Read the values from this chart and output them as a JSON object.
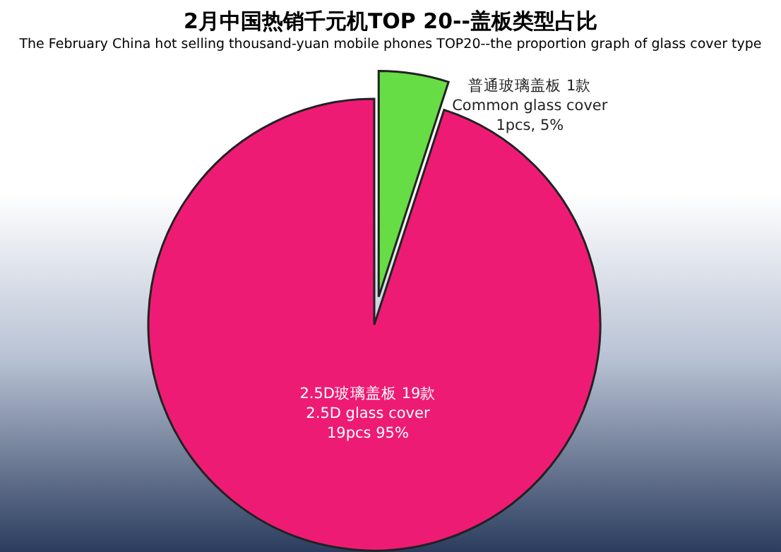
{
  "chart_data": {
    "type": "pie",
    "title": "2月中国热销千元机TOP 20--盖板类型占比",
    "subtitle": "The February China hot selling thousand-yuan mobile phones TOP20--the proportion graph of glass cover type",
    "categories": [
      "普通玻璃盖板 1款 Common glass cover 1pcs",
      "2.5D玻璃盖板 19款 2.5D glass cover 19pcs"
    ],
    "values": [
      5,
      95
    ],
    "colors": [
      "#66dd44",
      "#ee1b74"
    ],
    "value_labels": [
      "5%",
      "95%"
    ]
  }
}
